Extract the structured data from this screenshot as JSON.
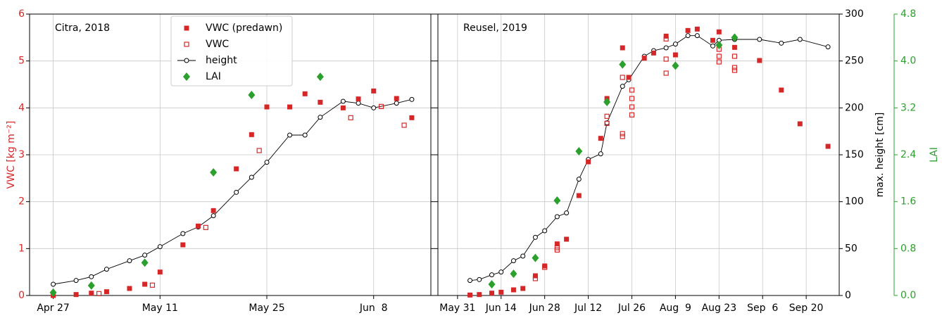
{
  "chart_data": {
    "type": "scatter",
    "ylabel": "VWC [kg m⁻²]",
    "ylim": [
      0,
      6
    ],
    "yticks": [
      0,
      1,
      2,
      3,
      4,
      5,
      6
    ],
    "y2label": "max. height [cm]",
    "y2lim": [
      0,
      300
    ],
    "y2ticks": [
      0,
      50,
      100,
      150,
      200,
      250,
      300
    ],
    "y3label": "LAI",
    "y3lim": [
      0,
      4.8
    ],
    "y3ticks": [
      {
        "value": 0,
        "label": "0.0"
      },
      {
        "value": 0.8,
        "label": "0.8"
      },
      1.6,
      2.4,
      3.2,
      {
        "value": 4,
        "label": "4.0"
      },
      4.8
    ],
    "grid": true,
    "series": [
      {
        "name": "VWC (predawn)",
        "color": "#d62728",
        "marker": "square",
        "axis": "y"
      },
      {
        "name": "VWC",
        "color": "#d62728",
        "marker": "open-square",
        "axis": "y"
      },
      {
        "name": "height",
        "color": "#000000",
        "marker": "open-circle",
        "line": true,
        "axis": "y2"
      },
      {
        "name": "LAI",
        "color": "#2ca02c",
        "marker": "diamond",
        "axis": "y3"
      }
    ],
    "panels": [
      {
        "title": "Citra, 2018",
        "xlim": [
          113.9,
          166.5
        ],
        "xticks": [
          {
            "value": 117,
            "label": "Apr 27"
          },
          {
            "value": 131,
            "label": "May 11"
          },
          {
            "value": 145,
            "label": "May 25"
          },
          {
            "value": 159,
            "label": "Jun  8"
          }
        ],
        "data": [
          {
            "x": [
              117,
              120,
              122,
              124,
              127,
              129,
              131,
              134,
              136,
              138,
              141,
              143,
              145,
              148,
              150,
              152,
              155,
              157,
              159,
              162,
              164
            ],
            "values": [
              0,
              0.02,
              0.05,
              0.08,
              0.15,
              0.24,
              0.5,
              1.08,
              1.48,
              1.81,
              2.7,
              3.43,
              4.02,
              4.02,
              4.3,
              4.12,
              4.0,
              4.19,
              4.36,
              4.2,
              3.79
            ]
          },
          {
            "x": [
              123,
              130,
              137,
              144,
              156,
              160,
              163
            ],
            "values": [
              0.04,
              0.22,
              1.45,
              3.09,
              3.79,
              4.03,
              3.63
            ]
          },
          {
            "x": [
              117,
              120,
              122,
              124,
              127,
              129,
              131,
              134,
              136,
              138,
              141,
              143,
              145,
              148,
              150,
              152,
              155,
              157,
              159,
              162,
              164
            ],
            "values": [
              12,
              16,
              20,
              28,
              37,
              43,
              52,
              66,
              73,
              85,
              110,
              126,
              142,
              171,
              171,
              190,
              207,
              205,
              200,
              205,
              209
            ]
          },
          {
            "x": [
              117,
              122,
              129,
              138,
              143,
              152
            ],
            "values": [
              0.05,
              0.17,
              0.56,
              2.1,
              3.42,
              3.73
            ]
          }
        ]
      },
      {
        "title": "Reusel, 2019",
        "xlim": [
          144.7,
          273.6
        ],
        "xticks": [
          {
            "value": 151,
            "label": "May 31"
          },
          {
            "value": 165,
            "label": "Jun 14"
          },
          {
            "value": 179,
            "label": "Jun 28"
          },
          {
            "value": 193,
            "label": "Jul 12"
          },
          {
            "value": 207,
            "label": "Jul 26"
          },
          {
            "value": 221,
            "label": "Aug  9"
          },
          {
            "value": 235,
            "label": "Aug 23"
          },
          {
            "value": 249,
            "label": "Sep  6"
          },
          {
            "value": 263,
            "label": "Sep 20"
          }
        ],
        "data": [
          {
            "x": [
              155,
              158,
              162,
              165,
              169,
              172,
              176,
              179,
              183,
              186,
              190,
              193,
              197,
              199,
              204,
              206,
              211,
              214,
              218,
              221,
              225,
              228,
              233,
              235,
              240,
              248,
              255,
              261,
              270
            ],
            "values": [
              0.01,
              0.02,
              0.05,
              0.07,
              0.12,
              0.15,
              0.42,
              0.63,
              1.1,
              1.2,
              2.13,
              2.85,
              3.35,
              4.2,
              5.28,
              4.65,
              5.06,
              5.17,
              5.53,
              5.13,
              5.65,
              5.68,
              5.44,
              5.62,
              5.29,
              5.01,
              4.38,
              3.66,
              3.18
            ]
          },
          {
            "x": [
              176,
              179,
              183,
              183,
              199,
              199,
              204,
              204,
              204,
              207,
              207,
              207,
              207,
              218,
              218,
              218,
              235,
              235,
              235,
              240,
              240,
              240
            ],
            "values": [
              0.36,
              0.6,
              1.02,
              0.97,
              3.82,
              3.67,
              4.65,
              3.45,
              3.39,
              4.38,
              4.2,
              4.02,
              3.85,
              5.47,
              5.04,
              4.74,
              5.25,
              5.1,
              4.98,
              5.1,
              4.86,
              4.8
            ]
          },
          {
            "x": [
              155,
              158,
              162,
              165,
              169,
              172,
              176,
              179,
              183,
              186,
              190,
              193,
              197,
              199,
              204,
              206,
              211,
              214,
              218,
              221,
              225,
              228,
              233,
              235,
              240,
              248,
              255,
              261,
              270
            ],
            "values": [
              16,
              17,
              22,
              25,
              37,
              42,
              62,
              69,
              84,
              88,
              124,
              145,
              151,
              184,
              223,
              230,
              255,
              261,
              264,
              268,
              277,
              277,
              266,
              272,
              273,
              273,
              269,
              273,
              265
            ]
          },
          {
            "x": [
              162,
              169,
              176,
              183,
              190,
              199,
              204,
              221,
              235,
              240
            ],
            "values": [
              0.19,
              0.37,
              0.64,
              1.62,
              2.46,
              3.3,
              3.94,
              3.92,
              4.27,
              4.4
            ]
          }
        ]
      }
    ]
  }
}
